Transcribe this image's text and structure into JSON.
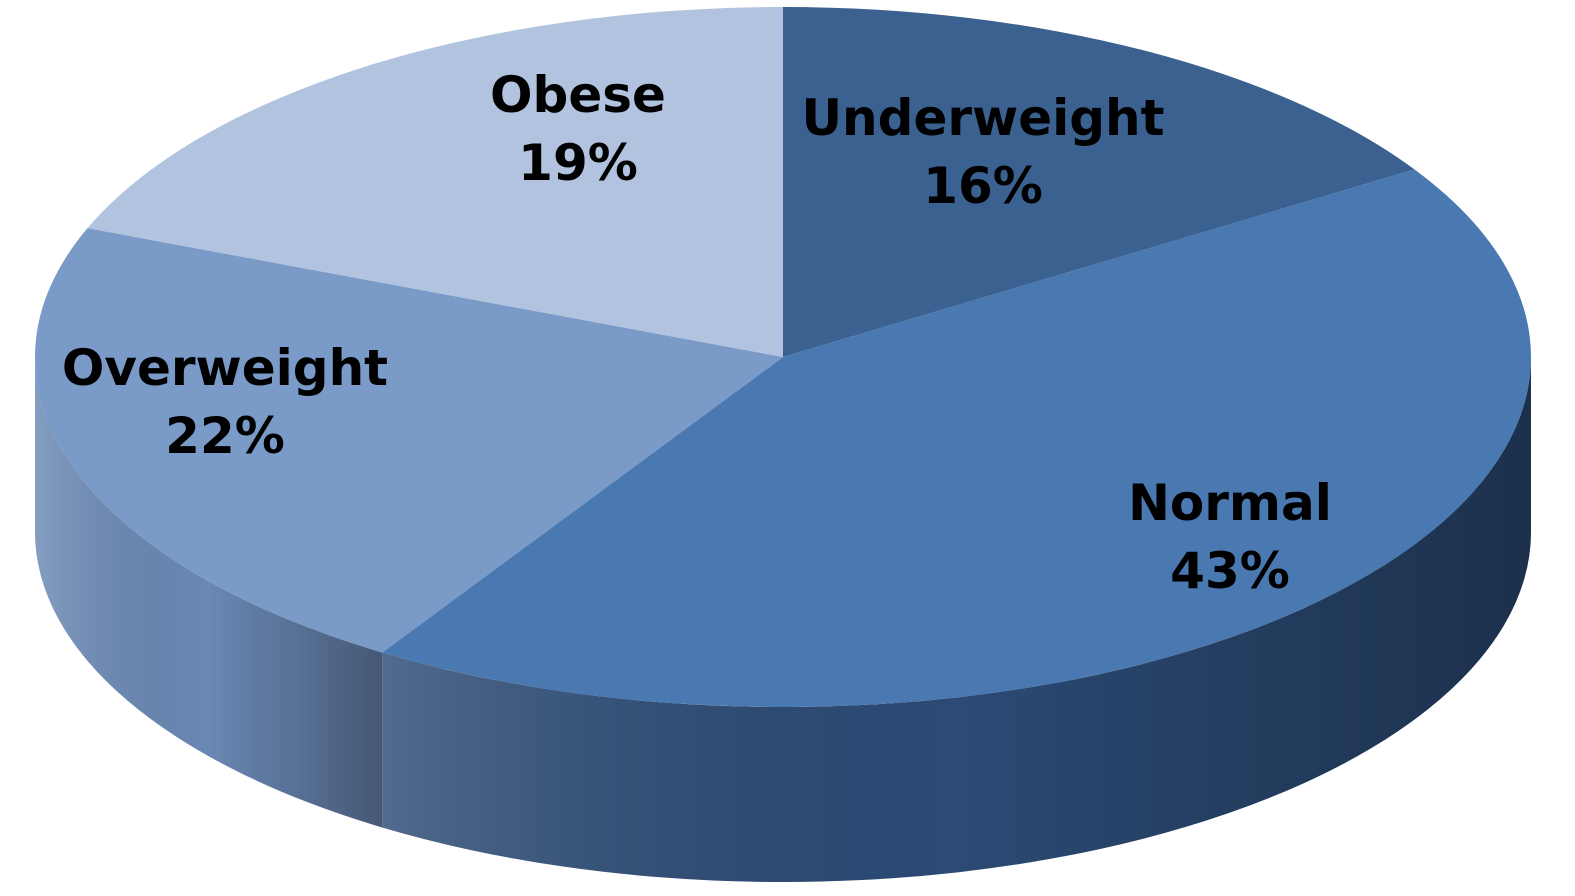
{
  "chart_data": {
    "type": "pie",
    "style": "3d",
    "title": "",
    "slices": [
      {
        "label": "Underweight",
        "value": 16,
        "value_label": "16%",
        "color": "#3a6190",
        "side_color": "#2b4a70"
      },
      {
        "label": "Normal",
        "value": 43,
        "value_label": "43%",
        "color": "#4a78b0",
        "side_color": "#2b4a74"
      },
      {
        "label": "Overweight",
        "value": 22,
        "value_label": "22%",
        "color": "#7a9ac8",
        "side_color": "#6a88b4"
      },
      {
        "label": "Obese",
        "value": 19,
        "value_label": "19%",
        "color": "#b2c3e0",
        "side_color": "#8ea3c8"
      }
    ]
  }
}
